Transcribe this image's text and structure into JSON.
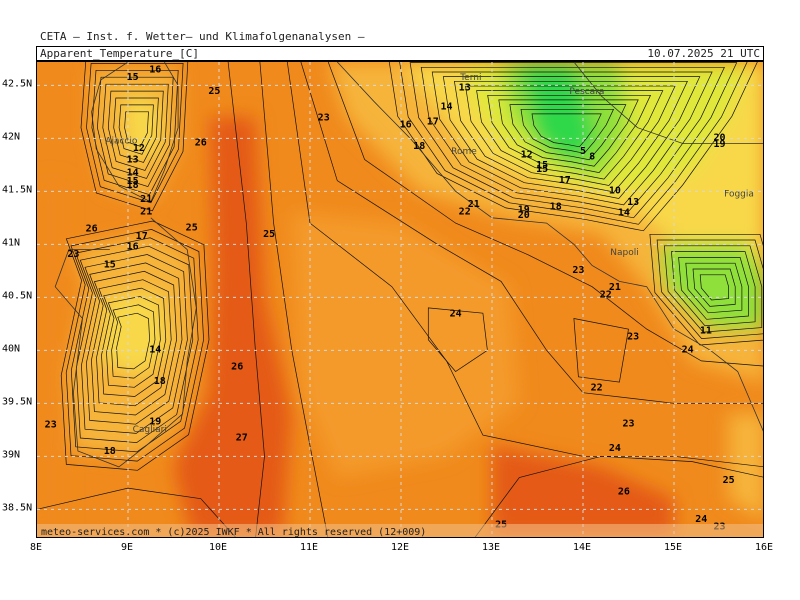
{
  "header": {
    "title": "CETA — Inst. f. Wetter— und Klimafolgenanalysen —",
    "parameter": "Apparent_Temperature_[C]",
    "valid_time": "10.07.2025 21 UTC"
  },
  "footer": {
    "copyright": "meteo-services.com * (c)2025 IWKF * All rights reserved (12+009)"
  },
  "axes": {
    "x_ticks": [
      "8E",
      "9E",
      "10E",
      "11E",
      "12E",
      "13E",
      "14E",
      "15E",
      "16E"
    ],
    "y_ticks": [
      "42.5N",
      "42N",
      "41.5N",
      "41N",
      "40.5N",
      "40N",
      "39.5N",
      "39N",
      "38.5N"
    ]
  },
  "map": {
    "lon_range": [
      8,
      16
    ],
    "lat_range": [
      38.22,
      42.72
    ],
    "grid": true,
    "colors": {
      "sea_warm": "#f08a1c",
      "sea_mid": "#f49a2a",
      "hot": "#e45a14",
      "mild": "#f6b43a",
      "cool": "#f8d84a",
      "cold": "#dfe83a",
      "green": "#8fe03a",
      "deep_green": "#2fd84a"
    },
    "cities": [
      {
        "name": "Rome",
        "lon": 12.55,
        "lat": 41.85
      },
      {
        "name": "Napoli",
        "lon": 14.3,
        "lat": 40.9
      },
      {
        "name": "Foggia",
        "lon": 15.55,
        "lat": 41.45
      },
      {
        "name": "Pescara",
        "lon": 13.85,
        "lat": 42.42
      },
      {
        "name": "Terni",
        "lon": 12.65,
        "lat": 42.55
      },
      {
        "name": "Cagliari",
        "lon": 9.05,
        "lat": 39.23
      },
      {
        "name": "Ajaccio",
        "lon": 8.75,
        "lat": 41.95
      }
    ],
    "contour_labels": [
      {
        "t": "16",
        "lon": 9.3,
        "lat": 42.62
      },
      {
        "t": "15",
        "lon": 9.05,
        "lat": 42.55
      },
      {
        "t": "25",
        "lon": 9.95,
        "lat": 42.42
      },
      {
        "t": "23",
        "lon": 11.15,
        "lat": 42.17
      },
      {
        "t": "26",
        "lon": 9.8,
        "lat": 41.93
      },
      {
        "t": "12",
        "lon": 9.12,
        "lat": 41.88
      },
      {
        "t": "13",
        "lon": 9.05,
        "lat": 41.77
      },
      {
        "t": "14",
        "lon": 9.05,
        "lat": 41.65
      },
      {
        "t": "15",
        "lon": 9.05,
        "lat": 41.57
      },
      {
        "t": "18",
        "lon": 9.05,
        "lat": 41.53
      },
      {
        "t": "21",
        "lon": 9.2,
        "lat": 41.4
      },
      {
        "t": "21",
        "lon": 9.2,
        "lat": 41.28
      },
      {
        "t": "26",
        "lon": 8.6,
        "lat": 41.12
      },
      {
        "t": "25",
        "lon": 9.7,
        "lat": 41.13
      },
      {
        "t": "17",
        "lon": 9.15,
        "lat": 41.05
      },
      {
        "t": "16",
        "lon": 9.05,
        "lat": 40.95
      },
      {
        "t": "25",
        "lon": 10.55,
        "lat": 41.07
      },
      {
        "t": "23",
        "lon": 8.4,
        "lat": 40.88
      },
      {
        "t": "15",
        "lon": 8.8,
        "lat": 40.78
      },
      {
        "t": "14",
        "lon": 9.3,
        "lat": 39.98
      },
      {
        "t": "18",
        "lon": 9.35,
        "lat": 39.68
      },
      {
        "t": "26",
        "lon": 10.2,
        "lat": 39.82
      },
      {
        "t": "23",
        "lon": 8.15,
        "lat": 39.27
      },
      {
        "t": "19",
        "lon": 9.3,
        "lat": 39.3
      },
      {
        "t": "27",
        "lon": 10.25,
        "lat": 39.15
      },
      {
        "t": "18",
        "lon": 8.8,
        "lat": 39.02
      },
      {
        "t": "13",
        "lon": 12.7,
        "lat": 42.45
      },
      {
        "t": "14",
        "lon": 12.5,
        "lat": 42.27
      },
      {
        "t": "17",
        "lon": 12.35,
        "lat": 42.13
      },
      {
        "t": "16",
        "lon": 12.05,
        "lat": 42.1
      },
      {
        "t": "18",
        "lon": 12.2,
        "lat": 41.9
      },
      {
        "t": "21",
        "lon": 12.8,
        "lat": 41.35
      },
      {
        "t": "22",
        "lon": 12.7,
        "lat": 41.28
      },
      {
        "t": "12",
        "lon": 13.38,
        "lat": 41.82
      },
      {
        "t": "15",
        "lon": 13.55,
        "lat": 41.72
      },
      {
        "t": "15",
        "lon": 13.55,
        "lat": 41.68
      },
      {
        "t": "5",
        "lon": 14.0,
        "lat": 41.85
      },
      {
        "t": "8",
        "lon": 14.1,
        "lat": 41.8
      },
      {
        "t": "17",
        "lon": 13.8,
        "lat": 41.58
      },
      {
        "t": "19",
        "lon": 13.35,
        "lat": 41.3
      },
      {
        "t": "20",
        "lon": 13.35,
        "lat": 41.25
      },
      {
        "t": "18",
        "lon": 13.7,
        "lat": 41.33
      },
      {
        "t": "10",
        "lon": 14.35,
        "lat": 41.48
      },
      {
        "t": "13",
        "lon": 14.55,
        "lat": 41.37
      },
      {
        "t": "14",
        "lon": 14.45,
        "lat": 41.27
      },
      {
        "t": "20",
        "lon": 15.5,
        "lat": 41.98
      },
      {
        "t": "19",
        "lon": 15.5,
        "lat": 41.92
      },
      {
        "t": "23",
        "lon": 13.95,
        "lat": 40.73
      },
      {
        "t": "21",
        "lon": 14.35,
        "lat": 40.57
      },
      {
        "t": "22",
        "lon": 14.25,
        "lat": 40.5
      },
      {
        "t": "24",
        "lon": 12.6,
        "lat": 40.32
      },
      {
        "t": "23",
        "lon": 14.55,
        "lat": 40.1
      },
      {
        "t": "11",
        "lon": 15.35,
        "lat": 40.16
      },
      {
        "t": "24",
        "lon": 15.15,
        "lat": 39.98
      },
      {
        "t": "22",
        "lon": 14.15,
        "lat": 39.62
      },
      {
        "t": "23",
        "lon": 14.5,
        "lat": 39.28
      },
      {
        "t": "24",
        "lon": 14.35,
        "lat": 39.05
      },
      {
        "t": "25",
        "lon": 15.6,
        "lat": 38.75
      },
      {
        "t": "26",
        "lon": 14.45,
        "lat": 38.64
      },
      {
        "t": "25",
        "lon": 13.1,
        "lat": 38.33
      },
      {
        "t": "24",
        "lon": 15.3,
        "lat": 38.38
      },
      {
        "t": "23",
        "lon": 15.5,
        "lat": 38.31
      }
    ]
  }
}
